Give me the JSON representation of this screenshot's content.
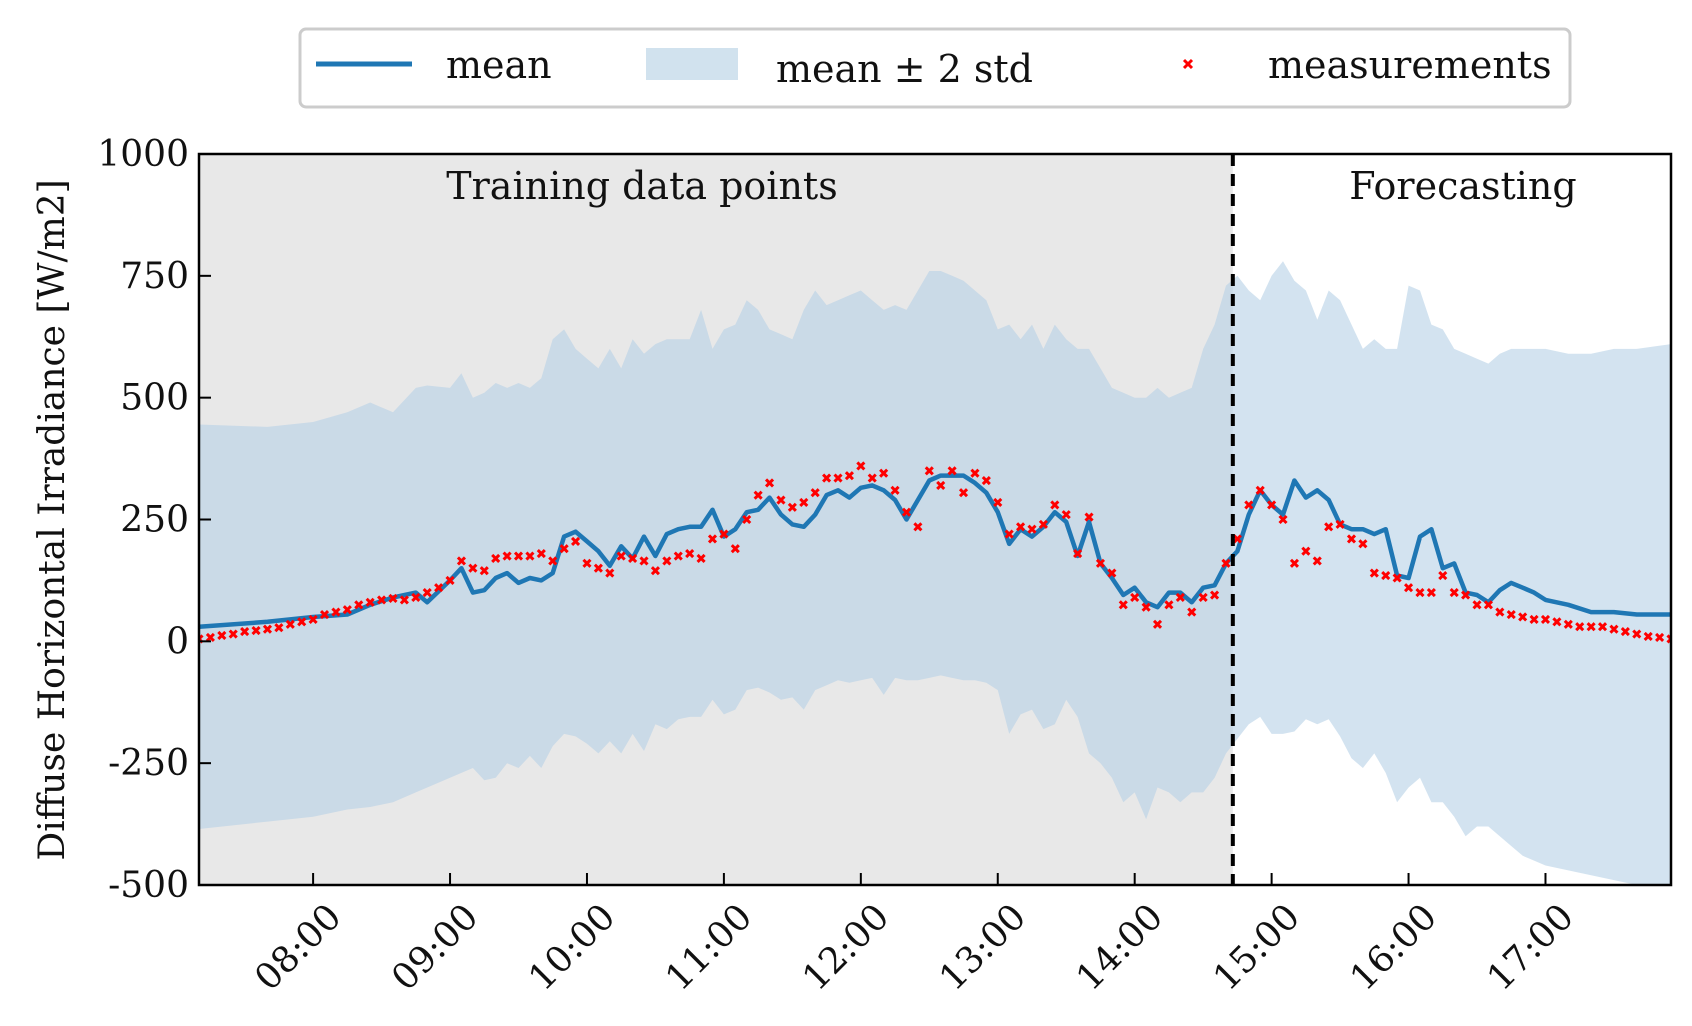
{
  "chart_data": {
    "type": "line",
    "title": "",
    "xlabel": "",
    "ylabel": "Diffuse Horizontal Irradiance [W/m2]",
    "xlim": [
      "07:10",
      "17:55"
    ],
    "ylim": [
      -500,
      1000
    ],
    "grid": false,
    "legend_placement": "top-center, outside",
    "x_tick_labels": [
      "08:00",
      "09:00",
      "10:00",
      "11:00",
      "12:00",
      "13:00",
      "14:00",
      "15:00",
      "16:00",
      "17:00"
    ],
    "y_tick_labels": [
      "1000",
      "750",
      "500",
      "250",
      "0",
      "-250",
      "-500"
    ],
    "y_tick_values": [
      1000,
      750,
      500,
      250,
      0,
      -250,
      -500
    ],
    "split_time": "14:43",
    "annotations": [
      "Training data points",
      "Forecasting"
    ],
    "colors": {
      "mean": "#1f77b4",
      "band": "#c6dbea",
      "training_background": "#e8e8e8",
      "measurements": "#ff0000",
      "split_line": "#000000"
    },
    "series": [
      {
        "name": "mean",
        "style": "line",
        "x": [
          "07:10",
          "07:40",
          "08:00",
          "08:15",
          "08:25",
          "08:35",
          "08:45",
          "08:50",
          "09:00",
          "09:05",
          "09:10",
          "09:15",
          "09:20",
          "09:25",
          "09:30",
          "09:35",
          "09:40",
          "09:45",
          "09:50",
          "09:55",
          "10:00",
          "10:05",
          "10:10",
          "10:15",
          "10:20",
          "10:25",
          "10:30",
          "10:35",
          "10:40",
          "10:45",
          "10:50",
          "10:55",
          "11:00",
          "11:05",
          "11:10",
          "11:15",
          "11:20",
          "11:25",
          "11:30",
          "11:35",
          "11:40",
          "11:45",
          "11:50",
          "11:55",
          "12:00",
          "12:05",
          "12:10",
          "12:15",
          "12:20",
          "12:25",
          "12:30",
          "12:35",
          "12:40",
          "12:45",
          "12:50",
          "12:55",
          "13:00",
          "13:05",
          "13:10",
          "13:15",
          "13:20",
          "13:25",
          "13:30",
          "13:35",
          "13:40",
          "13:45",
          "13:50",
          "13:55",
          "14:00",
          "14:05",
          "14:10",
          "14:15",
          "14:20",
          "14:25",
          "14:30",
          "14:35",
          "14:40",
          "14:45",
          "14:50",
          "14:55",
          "15:00",
          "15:05",
          "15:10",
          "15:15",
          "15:20",
          "15:25",
          "15:30",
          "15:35",
          "15:40",
          "15:45",
          "15:50",
          "15:55",
          "16:00",
          "16:05",
          "16:10",
          "16:15",
          "16:20",
          "16:25",
          "16:30",
          "16:35",
          "16:40",
          "16:45",
          "16:50",
          "16:55",
          "17:00",
          "17:10",
          "17:20",
          "17:30",
          "17:40",
          "17:55"
        ],
        "values": [
          30,
          40,
          50,
          55,
          75,
          90,
          100,
          80,
          125,
          150,
          100,
          105,
          130,
          140,
          120,
          130,
          125,
          140,
          215,
          225,
          205,
          185,
          155,
          195,
          170,
          215,
          175,
          220,
          230,
          235,
          235,
          270,
          215,
          230,
          265,
          270,
          295,
          260,
          240,
          235,
          260,
          300,
          310,
          295,
          315,
          320,
          310,
          290,
          250,
          290,
          330,
          340,
          340,
          340,
          325,
          305,
          265,
          200,
          230,
          215,
          235,
          265,
          245,
          175,
          245,
          160,
          130,
          95,
          110,
          80,
          70,
          100,
          100,
          80,
          110,
          115,
          160,
          185,
          260,
          310,
          280,
          260,
          330,
          295,
          310,
          290,
          240,
          230,
          230,
          220,
          230,
          135,
          130,
          215,
          230,
          150,
          160,
          100,
          95,
          80,
          105,
          120,
          110,
          100,
          85,
          75,
          60,
          60,
          55,
          55
        ]
      },
      {
        "name": "mean ± 2 std",
        "style": "band",
        "x": [
          "07:10",
          "07:40",
          "08:00",
          "08:15",
          "08:25",
          "08:35",
          "08:45",
          "08:50",
          "09:00",
          "09:05",
          "09:10",
          "09:15",
          "09:20",
          "09:25",
          "09:30",
          "09:35",
          "09:40",
          "09:45",
          "09:50",
          "09:55",
          "10:00",
          "10:05",
          "10:10",
          "10:15",
          "10:20",
          "10:25",
          "10:30",
          "10:35",
          "10:40",
          "10:45",
          "10:50",
          "10:55",
          "11:00",
          "11:05",
          "11:10",
          "11:15",
          "11:20",
          "11:25",
          "11:30",
          "11:35",
          "11:40",
          "11:45",
          "11:50",
          "11:55",
          "12:00",
          "12:05",
          "12:10",
          "12:15",
          "12:20",
          "12:25",
          "12:30",
          "12:35",
          "12:40",
          "12:45",
          "12:50",
          "12:55",
          "13:00",
          "13:05",
          "13:10",
          "13:15",
          "13:20",
          "13:25",
          "13:30",
          "13:35",
          "13:40",
          "13:45",
          "13:50",
          "13:55",
          "14:00",
          "14:05",
          "14:10",
          "14:15",
          "14:20",
          "14:25",
          "14:30",
          "14:35",
          "14:40",
          "14:45",
          "14:50",
          "14:55",
          "15:00",
          "15:05",
          "15:10",
          "15:15",
          "15:20",
          "15:25",
          "15:30",
          "15:35",
          "15:40",
          "15:45",
          "15:50",
          "15:55",
          "16:00",
          "16:05",
          "16:10",
          "16:15",
          "16:20",
          "16:25",
          "16:30",
          "16:35",
          "16:40",
          "16:45",
          "16:50",
          "16:55",
          "17:00",
          "17:10",
          "17:20",
          "17:30",
          "17:40",
          "17:55"
        ],
        "upper": [
          445,
          440,
          450,
          470,
          490,
          470,
          520,
          525,
          520,
          550,
          500,
          510,
          530,
          520,
          530,
          520,
          540,
          620,
          640,
          600,
          580,
          560,
          600,
          560,
          620,
          590,
          610,
          620,
          620,
          620,
          680,
          600,
          640,
          650,
          700,
          680,
          640,
          630,
          620,
          680,
          720,
          690,
          700,
          710,
          720,
          700,
          680,
          690,
          680,
          720,
          760,
          760,
          750,
          740,
          720,
          700,
          640,
          650,
          620,
          650,
          600,
          650,
          620,
          600,
          600,
          560,
          520,
          510,
          500,
          500,
          520,
          500,
          510,
          520,
          600,
          650,
          730,
          750,
          720,
          700,
          750,
          780,
          740,
          720,
          660,
          720,
          700,
          650,
          600,
          620,
          600,
          600,
          730,
          720,
          650,
          640,
          600,
          590,
          580,
          570,
          590,
          600,
          600,
          600,
          600,
          590,
          590,
          600,
          600,
          610
        ],
        "lower": [
          -385,
          -370,
          -360,
          -345,
          -340,
          -330,
          -310,
          -300,
          -280,
          -270,
          -260,
          -285,
          -280,
          -250,
          -260,
          -235,
          -260,
          -215,
          -190,
          -195,
          -210,
          -230,
          -205,
          -230,
          -190,
          -225,
          -170,
          -180,
          -160,
          -155,
          -155,
          -120,
          -150,
          -140,
          -100,
          -95,
          -105,
          -120,
          -115,
          -140,
          -100,
          -90,
          -80,
          -85,
          -80,
          -75,
          -110,
          -75,
          -80,
          -80,
          -75,
          -70,
          -75,
          -80,
          -80,
          -85,
          -100,
          -190,
          -150,
          -140,
          -180,
          -170,
          -120,
          -155,
          -230,
          -250,
          -280,
          -330,
          -310,
          -365,
          -300,
          -310,
          -330,
          -310,
          -310,
          -280,
          -230,
          -200,
          -170,
          -155,
          -190,
          -190,
          -185,
          -160,
          -170,
          -160,
          -195,
          -240,
          -260,
          -230,
          -270,
          -330,
          -300,
          -280,
          -330,
          -330,
          -360,
          -400,
          -380,
          -380,
          -400,
          -420,
          -440,
          -450,
          -460,
          -470,
          -480,
          -490,
          -500,
          -510
        ]
      },
      {
        "name": "measurements",
        "style": "scatter",
        "x": [
          "07:10",
          "07:15",
          "07:20",
          "07:25",
          "07:30",
          "07:35",
          "07:40",
          "07:45",
          "07:50",
          "07:55",
          "08:00",
          "08:05",
          "08:10",
          "08:15",
          "08:20",
          "08:25",
          "08:30",
          "08:35",
          "08:40",
          "08:45",
          "08:50",
          "08:55",
          "09:00",
          "09:05",
          "09:10",
          "09:15",
          "09:20",
          "09:25",
          "09:30",
          "09:35",
          "09:40",
          "09:45",
          "09:50",
          "09:55",
          "10:00",
          "10:05",
          "10:10",
          "10:15",
          "10:20",
          "10:25",
          "10:30",
          "10:35",
          "10:40",
          "10:45",
          "10:50",
          "10:55",
          "11:00",
          "11:05",
          "11:10",
          "11:15",
          "11:20",
          "11:25",
          "11:30",
          "11:35",
          "11:40",
          "11:45",
          "11:50",
          "11:55",
          "12:00",
          "12:05",
          "12:10",
          "12:15",
          "12:20",
          "12:25",
          "12:30",
          "12:35",
          "12:40",
          "12:45",
          "12:50",
          "12:55",
          "13:00",
          "13:05",
          "13:10",
          "13:15",
          "13:20",
          "13:25",
          "13:30",
          "13:35",
          "13:40",
          "13:45",
          "13:50",
          "13:55",
          "14:00",
          "14:05",
          "14:10",
          "14:15",
          "14:20",
          "14:25",
          "14:30",
          "14:35",
          "14:40",
          "14:45",
          "14:50",
          "14:55",
          "15:00",
          "15:05",
          "15:10",
          "15:15",
          "15:20",
          "15:25",
          "15:30",
          "15:35",
          "15:40",
          "15:45",
          "15:50",
          "15:55",
          "16:00",
          "16:05",
          "16:10",
          "16:15",
          "16:20",
          "16:25",
          "16:30",
          "16:35",
          "16:40",
          "16:45",
          "16:50",
          "16:55",
          "17:00",
          "17:05",
          "17:10",
          "17:15",
          "17:20",
          "17:25",
          "17:30",
          "17:35",
          "17:40",
          "17:45",
          "17:50",
          "17:55"
        ],
        "values": [
          5,
          8,
          12,
          15,
          20,
          22,
          25,
          28,
          35,
          40,
          45,
          55,
          60,
          65,
          75,
          80,
          85,
          88,
          85,
          90,
          100,
          110,
          125,
          165,
          150,
          145,
          170,
          175,
          175,
          175,
          180,
          165,
          190,
          205,
          160,
          150,
          140,
          175,
          170,
          165,
          145,
          165,
          175,
          180,
          170,
          210,
          220,
          190,
          250,
          300,
          325,
          290,
          275,
          285,
          305,
          335,
          335,
          340,
          360,
          335,
          345,
          310,
          265,
          235,
          350,
          320,
          350,
          305,
          345,
          330,
          285,
          220,
          235,
          230,
          240,
          280,
          260,
          180,
          255,
          160,
          140,
          75,
          90,
          70,
          35,
          75,
          90,
          60,
          90,
          95,
          160,
          210,
          280,
          310,
          280,
          250,
          160,
          185,
          165,
          235,
          240,
          210,
          200,
          140,
          135,
          130,
          110,
          100,
          100,
          135,
          100,
          95,
          75,
          75,
          60,
          55,
          50,
          45,
          45,
          40,
          35,
          30,
          30,
          30,
          25,
          20,
          15,
          10,
          8,
          5
        ]
      }
    ]
  }
}
